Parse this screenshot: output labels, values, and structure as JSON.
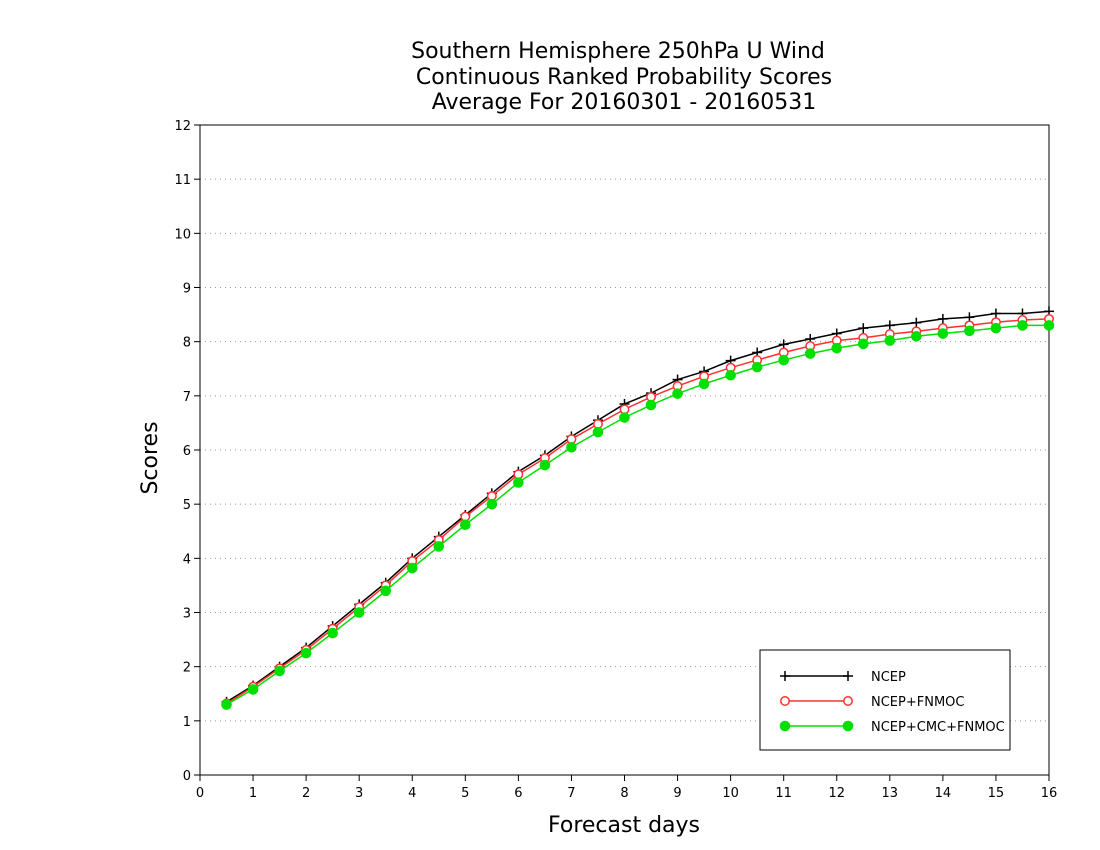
{
  "chart_data": {
    "type": "line",
    "title": [
      "Southern Hemisphere 250hPa U Wind",
      "Continuous Ranked Probability Scores",
      "Average For 20160301 - 20160531"
    ],
    "xlabel": "Forecast days",
    "ylabel": "Scores",
    "xlim": [
      0,
      16
    ],
    "ylim": [
      0,
      12
    ],
    "xticks": [
      "0",
      "1",
      "2",
      "3",
      "4",
      "5",
      "6",
      "7",
      "8",
      "9",
      "10",
      "11",
      "12",
      "13",
      "14",
      "15",
      "16"
    ],
    "yticks": [
      "0",
      "1",
      "2",
      "3",
      "4",
      "5",
      "6",
      "7",
      "8",
      "9",
      "10",
      "11",
      "12"
    ],
    "grid": "horizontal dotted",
    "legend_position": "bottom-right",
    "x": [
      0.5,
      1,
      1.5,
      2,
      2.5,
      3,
      3.5,
      4,
      4.5,
      5,
      5.5,
      6,
      6.5,
      7,
      7.5,
      8,
      8.5,
      9,
      9.5,
      10,
      10.5,
      11,
      11.5,
      12,
      12.5,
      13,
      13.5,
      14,
      14.5,
      15,
      15.5,
      16
    ],
    "series": [
      {
        "name": "NCEP",
        "color": "#000000",
        "marker": "plus",
        "values": [
          1.35,
          1.65,
          2.0,
          2.35,
          2.75,
          3.15,
          3.55,
          4.0,
          4.4,
          4.8,
          5.2,
          5.6,
          5.9,
          6.25,
          6.55,
          6.85,
          7.05,
          7.3,
          7.45,
          7.65,
          7.8,
          7.95,
          8.05,
          8.15,
          8.25,
          8.3,
          8.35,
          8.42,
          8.45,
          8.52,
          8.52,
          8.56
        ]
      },
      {
        "name": "NCEP+FNMOC",
        "color": "#ff3030",
        "marker": "open-circle",
        "values": [
          1.32,
          1.63,
          1.97,
          2.31,
          2.7,
          3.1,
          3.5,
          3.95,
          4.34,
          4.77,
          5.15,
          5.55,
          5.85,
          6.2,
          6.48,
          6.75,
          6.98,
          7.18,
          7.36,
          7.52,
          7.66,
          7.8,
          7.92,
          8.02,
          8.07,
          8.14,
          8.19,
          8.25,
          8.3,
          8.36,
          8.4,
          8.42
        ]
      },
      {
        "name": "NCEP+CMC+FNMOC",
        "color": "#00e000",
        "marker": "filled-circle",
        "values": [
          1.3,
          1.58,
          1.92,
          2.25,
          2.62,
          3.0,
          3.4,
          3.82,
          4.22,
          4.62,
          5.0,
          5.4,
          5.72,
          6.05,
          6.33,
          6.6,
          6.83,
          7.04,
          7.22,
          7.38,
          7.53,
          7.66,
          7.78,
          7.88,
          7.96,
          8.02,
          8.1,
          8.15,
          8.2,
          8.25,
          8.3,
          8.3
        ]
      }
    ]
  }
}
